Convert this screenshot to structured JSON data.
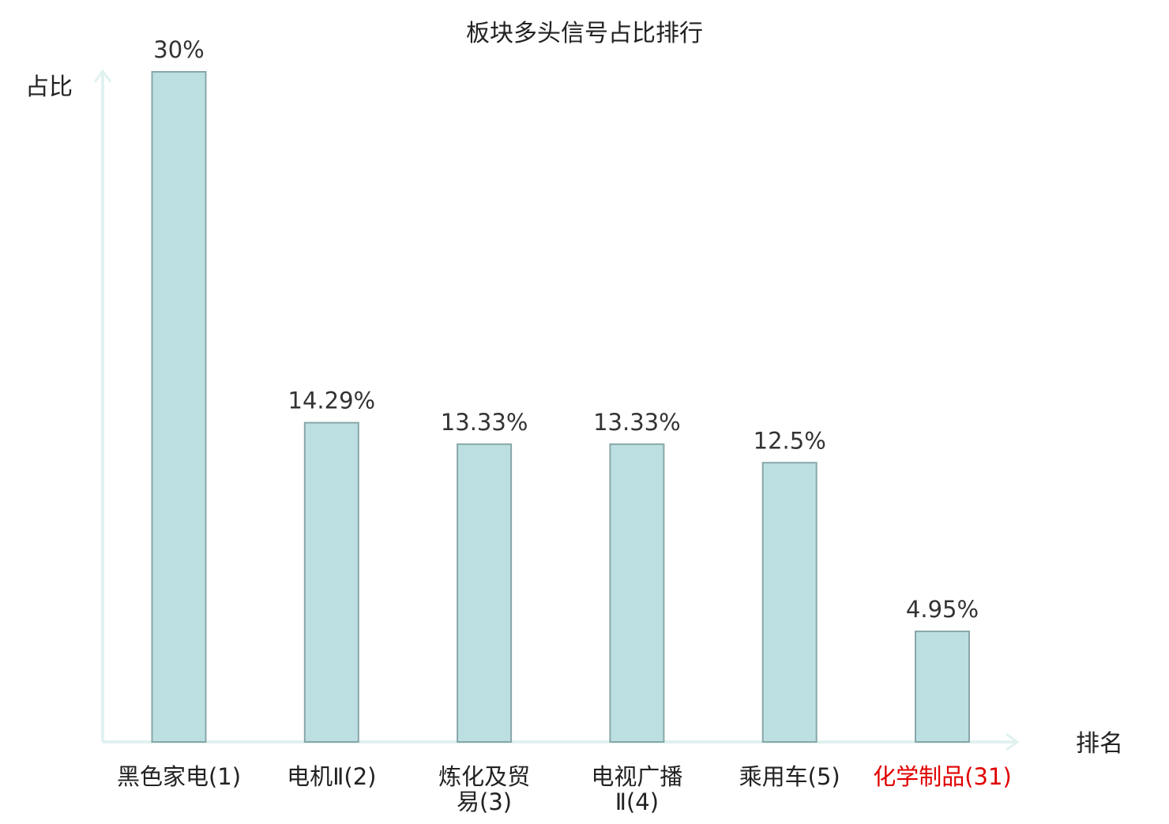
{
  "chart_data": {
    "type": "bar",
    "title": "板块多头信号占比排行",
    "ylabel": "占比",
    "xlabel": "排名",
    "categories": [
      [
        "黑色家电(1)"
      ],
      [
        "电机Ⅱ(2)"
      ],
      [
        "炼化及贸",
        "易(3)"
      ],
      [
        "电视广播",
        "Ⅱ(4)"
      ],
      [
        "乘用车(5)"
      ],
      [
        "化学制品(31)"
      ]
    ],
    "values": [
      30,
      14.29,
      13.33,
      13.33,
      12.5,
      4.95
    ],
    "value_labels": [
      "30%",
      "14.29%",
      "13.33%",
      "13.33%",
      "12.5%",
      "4.95%"
    ],
    "highlight_index": 5,
    "ylim": [
      0,
      30
    ],
    "grid": false,
    "colors": {
      "bar_fill": "#bce0e2",
      "bar_stroke": "#88a6a8",
      "axis": "#e0f2f0",
      "text": "#333333",
      "title": "#222222",
      "highlight": "#e00000"
    }
  }
}
